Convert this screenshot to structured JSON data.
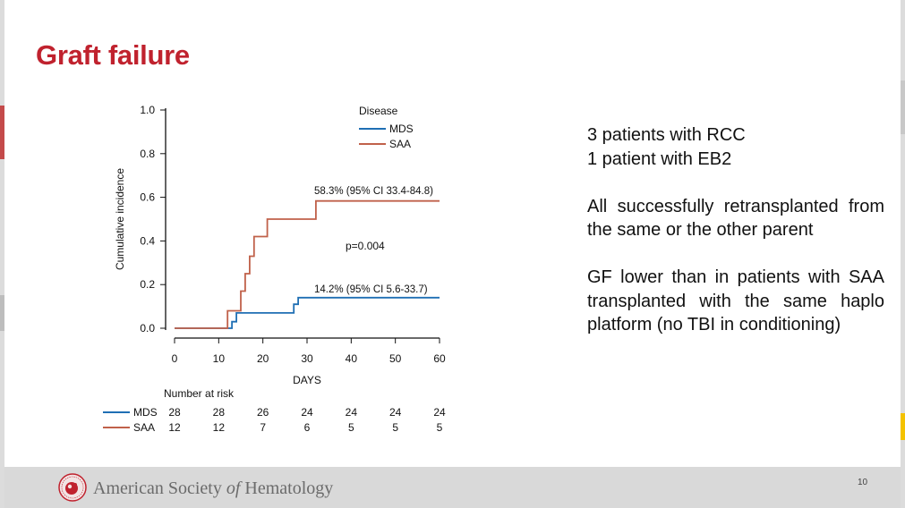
{
  "slide": {
    "title": "Graft failure",
    "page_number": "10"
  },
  "footer": {
    "org_pre": "American Society ",
    "org_of": "of",
    "org_post": " Hematology"
  },
  "bullets": {
    "line1": "3 patients with RCC",
    "line2": "1 patient with EB2",
    "para1": "All successfully retransplanted from the same or the other parent",
    "para2": "GF lower than in patients with SAA transplanted with the same haplo platform (no TBI in conditioning)"
  },
  "colors": {
    "title": "#c0222e",
    "mds": "#1f6fb4",
    "saa": "#c0614a"
  },
  "chart_data": {
    "type": "line",
    "xlabel": "DAYS",
    "ylabel": "Cumulative incidence",
    "xlim": [
      0,
      60
    ],
    "ylim": [
      0,
      1.0
    ],
    "xticks": [
      "0",
      "10",
      "20",
      "30",
      "40",
      "50",
      "60"
    ],
    "yticks": [
      "0.0",
      "0.2",
      "0.4",
      "0.6",
      "0.8",
      "1.0"
    ],
    "legend_title": "Disease",
    "legend_position": "top-right",
    "series": [
      {
        "name": "MDS",
        "color": "#1f6fb4",
        "steps": [
          [
            0,
            0
          ],
          [
            13,
            0
          ],
          [
            13,
            0.03
          ],
          [
            14,
            0.03
          ],
          [
            14,
            0.07
          ],
          [
            27,
            0.07
          ],
          [
            27,
            0.11
          ],
          [
            28,
            0.11
          ],
          [
            28,
            0.14
          ],
          [
            60,
            0.14
          ]
        ],
        "annotation": "14.2% (95% CI 5.6-33.7)"
      },
      {
        "name": "SAA",
        "color": "#c0614a",
        "steps": [
          [
            0,
            0
          ],
          [
            12,
            0
          ],
          [
            12,
            0.08
          ],
          [
            15,
            0.08
          ],
          [
            15,
            0.17
          ],
          [
            16,
            0.17
          ],
          [
            16,
            0.25
          ],
          [
            17,
            0.25
          ],
          [
            17,
            0.33
          ],
          [
            18,
            0.33
          ],
          [
            18,
            0.42
          ],
          [
            21,
            0.42
          ],
          [
            21,
            0.5
          ],
          [
            32,
            0.5
          ],
          [
            32,
            0.583
          ],
          [
            60,
            0.583
          ]
        ],
        "annotation": "58.3% (95% CI 33.4-84.8)"
      }
    ],
    "p_value": "p=0.004",
    "risk_table": {
      "title": "Number at risk",
      "rows": [
        {
          "name": "MDS",
          "values": [
            "28",
            "28",
            "26",
            "24",
            "24",
            "24",
            "24"
          ]
        },
        {
          "name": "SAA",
          "values": [
            "12",
            "12",
            "7",
            "6",
            "5",
            "5",
            "5"
          ]
        }
      ]
    }
  }
}
